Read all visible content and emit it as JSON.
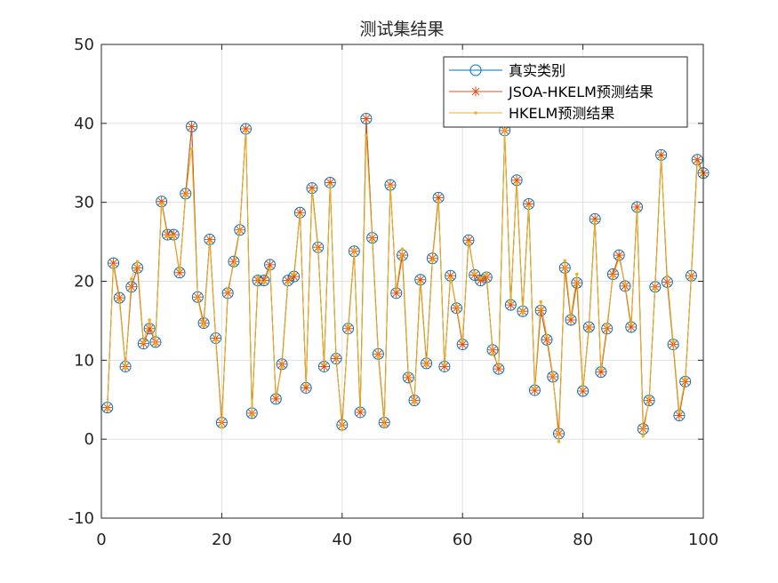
{
  "chart_data": {
    "type": "line",
    "title": "测试集结果",
    "xlabel": "",
    "ylabel": "",
    "xlim": [
      0,
      100
    ],
    "ylim": [
      -10,
      50
    ],
    "xticks": [
      0,
      20,
      40,
      60,
      80,
      100
    ],
    "yticks": [
      -10,
      0,
      10,
      20,
      30,
      40,
      50
    ],
    "grid": true,
    "legend_position": "top-right",
    "colors": {
      "true": "#0072BD",
      "jsoa": "#D95319",
      "hkelm": "#EDB120",
      "grid": "#e0e0e0",
      "axis": "#262626"
    },
    "x": [
      1,
      2,
      3,
      4,
      5,
      6,
      7,
      8,
      9,
      10,
      11,
      12,
      13,
      14,
      15,
      16,
      17,
      18,
      19,
      20,
      21,
      22,
      23,
      24,
      25,
      26,
      27,
      28,
      29,
      30,
      31,
      32,
      33,
      34,
      35,
      36,
      37,
      38,
      39,
      40,
      41,
      42,
      43,
      44,
      45,
      46,
      47,
      48,
      49,
      50,
      51,
      52,
      53,
      54,
      55,
      56,
      57,
      58,
      59,
      60,
      61,
      62,
      63,
      64,
      65,
      66,
      67,
      68,
      69,
      70,
      71,
      72,
      73,
      74,
      75,
      76,
      77,
      78,
      79,
      80,
      81,
      82,
      83,
      84,
      85,
      86,
      87,
      88,
      89,
      90,
      91,
      92,
      93,
      94,
      95,
      96,
      97,
      98,
      99,
      100
    ],
    "series": [
      {
        "name": "真实类别",
        "marker": "circle",
        "values": [
          4.0,
          22.3,
          17.9,
          9.2,
          19.3,
          21.7,
          12.1,
          14.0,
          12.3,
          30.1,
          25.9,
          25.9,
          21.1,
          31.1,
          39.6,
          18.0,
          14.7,
          25.3,
          12.8,
          2.1,
          18.5,
          22.5,
          26.5,
          39.3,
          3.3,
          20.1,
          20.1,
          22.1,
          5.1,
          9.5,
          20.1,
          20.6,
          28.7,
          6.5,
          31.8,
          24.3,
          9.2,
          32.5,
          10.2,
          1.8,
          14.0,
          23.8,
          3.4,
          40.6,
          25.5,
          10.8,
          2.1,
          32.2,
          18.5,
          23.3,
          7.8,
          4.9,
          20.2,
          9.6,
          22.9,
          30.6,
          9.2,
          20.7,
          16.6,
          12.0,
          25.2,
          20.8,
          20.1,
          20.5,
          11.3,
          8.9,
          39.1,
          17.0,
          32.8,
          16.2,
          29.8,
          6.2,
          16.3,
          12.6,
          7.9,
          0.7,
          21.7,
          15.1,
          19.8,
          6.1,
          14.2,
          27.9,
          8.5,
          14.0,
          20.9,
          23.3,
          19.4,
          14.2,
          29.4,
          1.3,
          4.9,
          19.3,
          36.0,
          19.9,
          12.0,
          3.0,
          7.3,
          20.7,
          35.4,
          33.7
        ]
      },
      {
        "name": "JSOA-HKELM预测结果",
        "marker": "star",
        "values": [
          4.0,
          22.3,
          17.9,
          9.2,
          19.3,
          21.7,
          12.1,
          14.0,
          12.3,
          30.1,
          25.9,
          25.9,
          21.1,
          31.1,
          39.6,
          18.0,
          14.7,
          25.3,
          12.8,
          2.1,
          18.5,
          22.5,
          26.5,
          39.3,
          3.3,
          20.1,
          20.1,
          22.1,
          5.1,
          9.5,
          20.1,
          20.6,
          28.7,
          6.5,
          31.8,
          24.3,
          9.2,
          32.5,
          10.2,
          1.8,
          14.0,
          23.8,
          3.4,
          40.6,
          25.5,
          10.8,
          2.1,
          32.2,
          18.5,
          23.3,
          7.8,
          4.9,
          20.2,
          9.6,
          22.9,
          30.6,
          9.2,
          20.7,
          16.6,
          12.0,
          25.2,
          20.8,
          20.1,
          20.5,
          11.3,
          8.9,
          39.1,
          17.0,
          32.8,
          16.2,
          29.8,
          6.2,
          16.3,
          12.6,
          7.9,
          0.7,
          21.7,
          15.1,
          19.8,
          6.1,
          14.2,
          27.9,
          8.5,
          14.0,
          20.9,
          23.3,
          19.4,
          14.2,
          29.4,
          1.3,
          4.9,
          19.3,
          36.0,
          19.9,
          12.0,
          3.0,
          7.3,
          20.7,
          35.4,
          33.7
        ]
      },
      {
        "name": "HKELM预测结果",
        "marker": "dot",
        "values": [
          3.7,
          22.0,
          17.5,
          9.0,
          20.3,
          22.5,
          12.3,
          15.1,
          12.0,
          29.8,
          25.6,
          25.7,
          21.4,
          30.8,
          36.8,
          17.8,
          14.3,
          25.0,
          12.5,
          1.5,
          19.0,
          22.1,
          26.3,
          39.0,
          3.0,
          20.5,
          19.8,
          21.6,
          5.5,
          9.1,
          19.8,
          21.0,
          28.4,
          6.9,
          31.5,
          24.0,
          9.6,
          32.2,
          10.6,
          1.2,
          14.4,
          24.0,
          3.8,
          38.5,
          25.1,
          10.4,
          1.6,
          32.0,
          18.9,
          24.1,
          8.2,
          4.6,
          19.8,
          9.3,
          22.6,
          30.1,
          9.5,
          20.4,
          16.9,
          12.4,
          24.9,
          21.0,
          20.4,
          21.0,
          10.8,
          9.3,
          39.2,
          17.4,
          32.4,
          16.0,
          29.5,
          6.5,
          17.4,
          13.1,
          8.2,
          -0.3,
          22.6,
          15.5,
          20.9,
          6.4,
          13.8,
          27.6,
          8.9,
          14.5,
          20.6,
          22.9,
          19.7,
          14.6,
          29.0,
          0.4,
          5.3,
          19.0,
          35.6,
          20.7,
          12.4,
          3.5,
          7.7,
          20.3,
          35.0,
          33.3
        ]
      }
    ]
  }
}
